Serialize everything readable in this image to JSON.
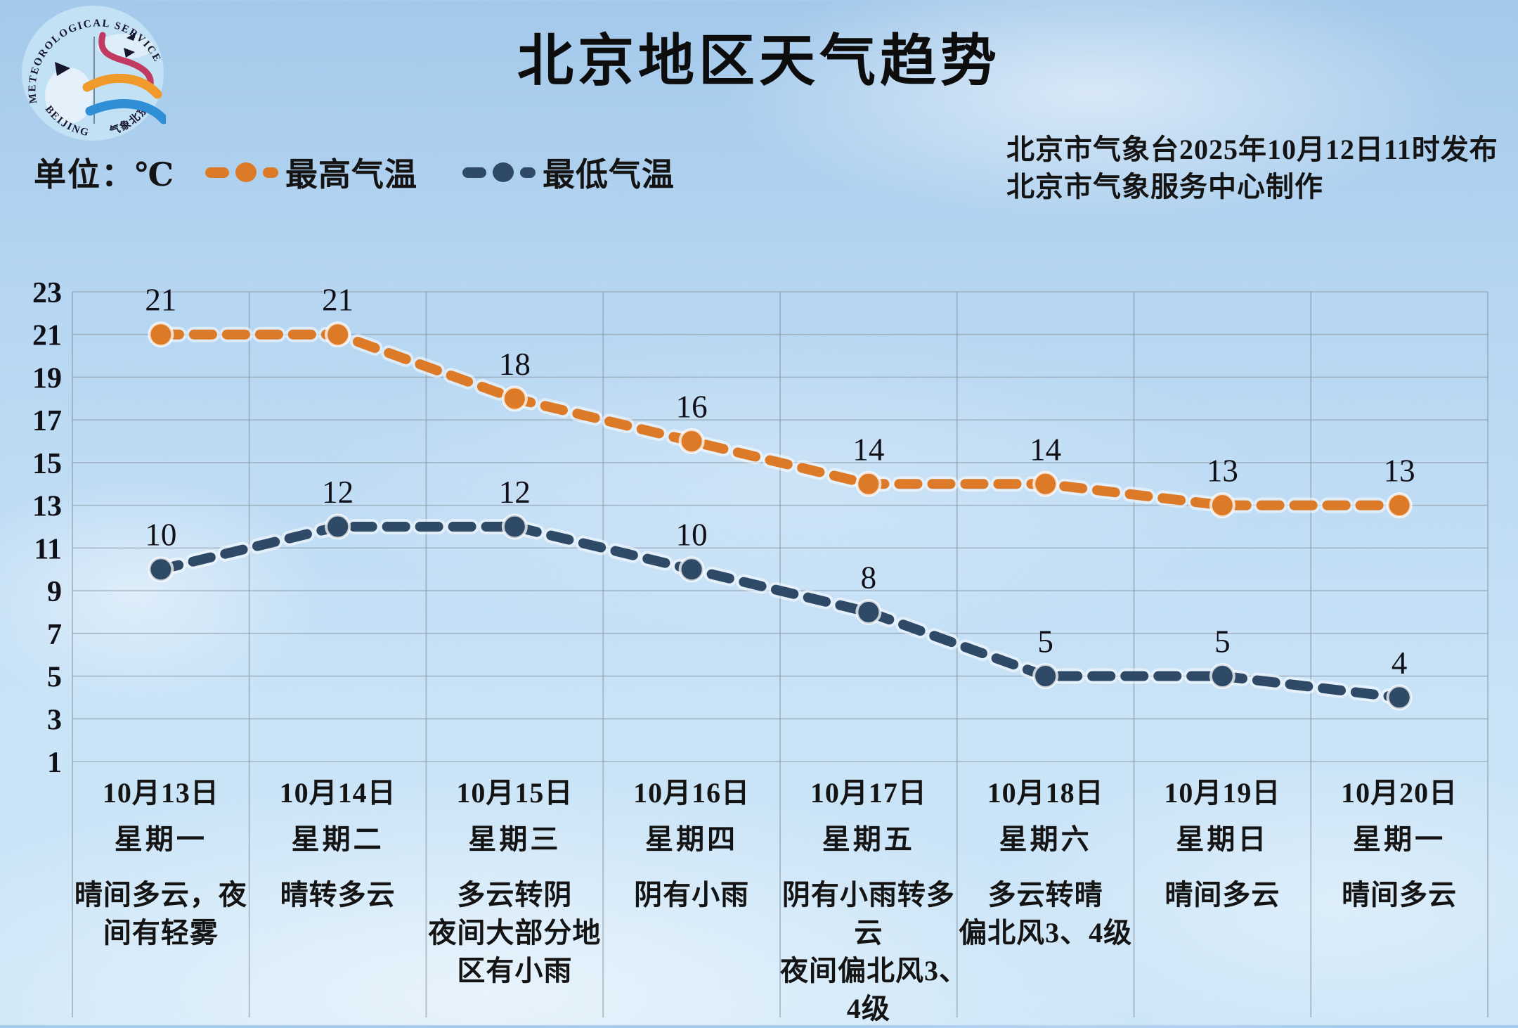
{
  "logo": {
    "ring_top": "METEOROLOGICAL SERVICE",
    "ring_bottom_left": "BEIJING",
    "ring_bottom_right": "气象北京"
  },
  "title": "北京地区天气趋势",
  "unit_label": "单位：℃",
  "issued_line1": "北京市气象台2025年10月12日11时发布",
  "issued_line2": "北京市气象服务中心制作",
  "legend": [
    {
      "label": "最高气温",
      "color": "#dc7a28"
    },
    {
      "label": "最低气温",
      "color": "#2e4a66"
    }
  ],
  "colors": {
    "high": "#dc7a28",
    "low": "#2e4a66",
    "grid": "#8c9aa6",
    "text": "#141414",
    "sky_top": "#a4c9eb",
    "sky_bottom": "#cde6f8"
  },
  "chart_data": {
    "type": "line",
    "x": [
      "10月13日",
      "10月14日",
      "10月15日",
      "10月16日",
      "10月17日",
      "10月18日",
      "10月19日",
      "10月20日"
    ],
    "yticks": [
      23,
      21,
      19,
      17,
      15,
      13,
      11,
      9,
      7,
      5,
      3,
      1
    ],
    "ylim": [
      1,
      23
    ],
    "grid": true,
    "legend_position": "top-left",
    "line_style": "dashed",
    "series": [
      {
        "name": "最高气温",
        "color": "#dc7a28",
        "values": [
          21,
          21,
          18,
          16,
          14,
          14,
          13,
          13
        ]
      },
      {
        "name": "最低气温",
        "color": "#2e4a66",
        "values": [
          10,
          12,
          12,
          10,
          8,
          5,
          5,
          4
        ]
      }
    ]
  },
  "days": [
    {
      "date": "10月13日",
      "weekday": "星期一",
      "weather": [
        "晴间多云，夜",
        "间有轻雾"
      ]
    },
    {
      "date": "10月14日",
      "weekday": "星期二",
      "weather": [
        "晴转多云"
      ]
    },
    {
      "date": "10月15日",
      "weekday": "星期三",
      "weather": [
        "多云转阴",
        "夜间大部分地",
        "区有小雨"
      ]
    },
    {
      "date": "10月16日",
      "weekday": "星期四",
      "weather": [
        "阴有小雨"
      ]
    },
    {
      "date": "10月17日",
      "weekday": "星期五",
      "weather": [
        "阴有小雨转多",
        "云",
        "夜间偏北风3、",
        "4级"
      ]
    },
    {
      "date": "10月18日",
      "weekday": "星期六",
      "weather": [
        "多云转晴",
        "偏北风3、4级"
      ]
    },
    {
      "date": "10月19日",
      "weekday": "星期日",
      "weather": [
        "晴间多云"
      ]
    },
    {
      "date": "10月20日",
      "weekday": "星期一",
      "weather": [
        "晴间多云"
      ]
    }
  ]
}
